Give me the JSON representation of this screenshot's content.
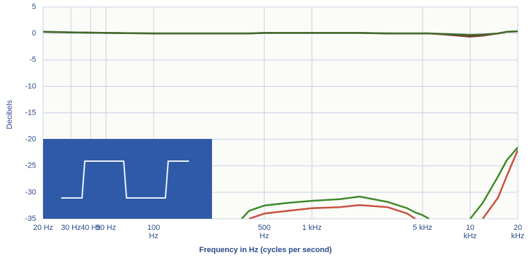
{
  "chart_data": {
    "type": "line",
    "xlabel": "Frequency in Hz (cycles per second)",
    "ylabel": "Decibels",
    "xlog": true,
    "grid": true,
    "xlim": [
      20,
      20000
    ],
    "ylim": [
      -35,
      5
    ],
    "yticks": [
      5,
      0,
      -5,
      -10,
      -15,
      -20,
      -25,
      -30,
      -35
    ],
    "xticks": [
      {
        "value": 20,
        "label": "20 Hz"
      },
      {
        "value": 30,
        "label": "30 Hz"
      },
      {
        "value": 40,
        "label": "40 Hz"
      },
      {
        "value": 50,
        "label": "50 Hz"
      },
      {
        "value": 100,
        "label": "100 Hz"
      },
      {
        "value": 500,
        "label": "500 Hz"
      },
      {
        "value": 1000,
        "label": "1 kHz"
      },
      {
        "value": 5000,
        "label": "5 kHz"
      },
      {
        "value": 10000,
        "label": "10 kHz"
      },
      {
        "value": 20000,
        "label": "20 kHz"
      }
    ],
    "x": [
      20,
      30,
      50,
      100,
      200,
      360,
      400,
      500,
      700,
      1000,
      1500,
      2000,
      3000,
      4000,
      4500,
      5000,
      5500,
      7000,
      10000,
      12000,
      15000,
      17000,
      20000
    ],
    "series": [
      {
        "color": "#7a3a2a",
        "values": [
          0.3,
          0.2,
          0.1,
          0,
          0,
          0,
          0,
          0.1,
          0.1,
          0.1,
          0.1,
          0.1,
          0,
          0,
          0,
          0,
          0,
          -0.2,
          -0.6,
          -0.4,
          0,
          0.3,
          0.4
        ]
      },
      {
        "color": "#3f6a2a",
        "values": [
          0.3,
          0.2,
          0.1,
          0,
          0,
          0,
          0,
          0.1,
          0.1,
          0.1,
          0.1,
          0.1,
          0,
          0,
          0,
          0,
          0,
          -0.1,
          -0.3,
          -0.2,
          0,
          0.3,
          0.4
        ]
      },
      {
        "color": "#3d8a2a",
        "values": [
          null,
          null,
          null,
          null,
          null,
          -35,
          -33.5,
          -32.5,
          -32,
          -31.6,
          -31.3,
          -30.8,
          -31.8,
          -33,
          -33.8,
          -34.3,
          -35,
          null,
          -35,
          -32,
          -27,
          -24,
          -21.5
        ]
      },
      {
        "color": "#c8503c",
        "values": [
          null,
          null,
          null,
          null,
          null,
          null,
          -35,
          -34,
          -33.5,
          -33,
          -32.8,
          -32.4,
          -32.8,
          -34,
          -35,
          null,
          null,
          null,
          null,
          -35,
          -31,
          -27,
          -22
        ]
      }
    ]
  }
}
